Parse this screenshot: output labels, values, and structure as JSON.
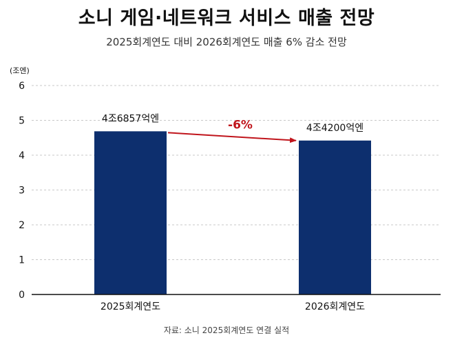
{
  "chart_data": {
    "type": "bar",
    "title": "소니 게임·네트워크 서비스 매출 전망",
    "subtitle": "2025회계연도 대비  2026회계연도 매출 6% 감소 전망",
    "ylabel": "(조엔)",
    "ylim": [
      0,
      6
    ],
    "yticks": [
      "0",
      "1",
      "2",
      "3",
      "4",
      "5",
      "6"
    ],
    "grid": true,
    "categories": [
      "2025회계연도",
      "2026회계연도"
    ],
    "values": [
      4.6857,
      4.42
    ],
    "data_labels": [
      "4조6857억엔",
      "4조4200억엔"
    ],
    "bar_color": "#0d2f6e",
    "annotation": {
      "text": "-6%",
      "color": "#c0141b"
    },
    "source": "자료: 소니  2025회계연도 연결 실적"
  }
}
